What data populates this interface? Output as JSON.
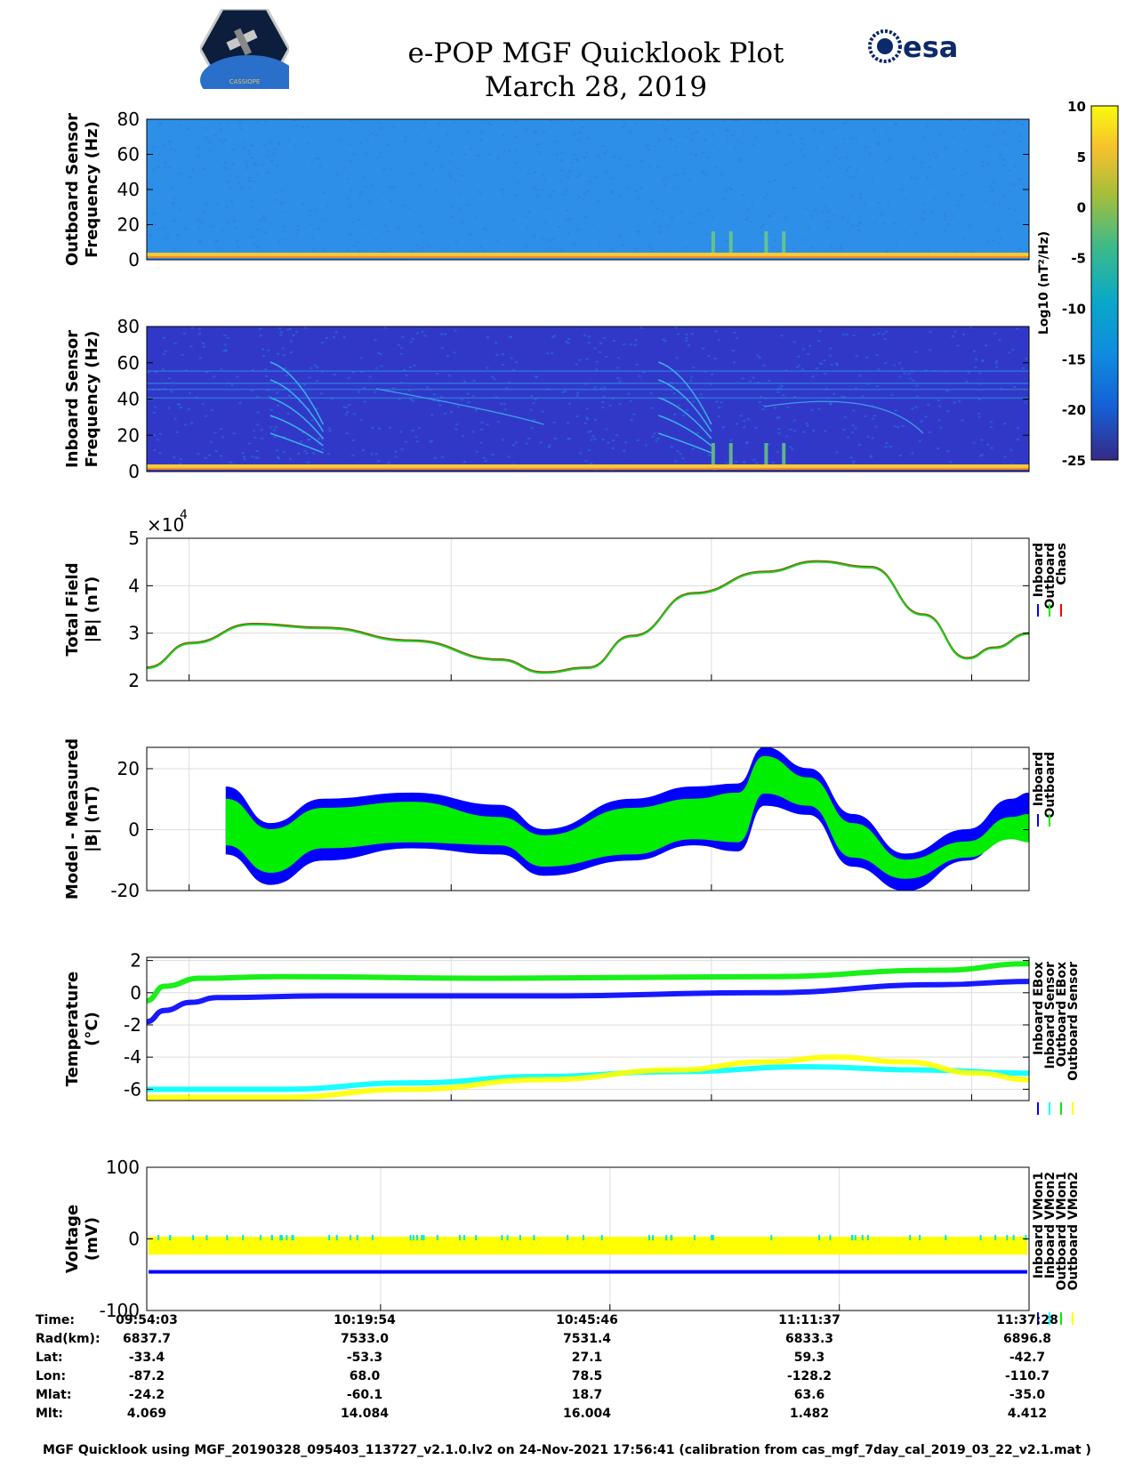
{
  "header": {
    "title": "e-POP MGF Quicklook Plot",
    "date": "March 28, 2019",
    "cassiope_logo_text": "CASSIOPE",
    "esa_logo_text": "esa"
  },
  "colorbar": {
    "label": "Log10 (nT²/Hz)",
    "ticks": [
      "10",
      "5",
      "0",
      "-5",
      "-10",
      "-15",
      "-20",
      "-25"
    ]
  },
  "chart_data": [
    {
      "type": "heatmap",
      "name": "outboard-spectrogram",
      "ylabel": [
        "Outboard Sensor",
        "Frequency (Hz)"
      ],
      "yticks": [
        "80",
        "60",
        "40",
        "20",
        "0"
      ],
      "ylim": [
        0,
        80
      ],
      "background_color": "#2e8fe8",
      "noise_color": "#2f7fe0",
      "line_color": "#f6c934"
    },
    {
      "type": "heatmap",
      "name": "inboard-spectrogram",
      "ylabel": [
        "Inboard Sensor",
        "Frequency (Hz)"
      ],
      "yticks": [
        "80",
        "60",
        "40",
        "20",
        "0"
      ],
      "ylim": [
        0,
        80
      ],
      "background_color": "#3138c8",
      "noise_color": "#2a6bdc",
      "line_color": "#f6c934"
    },
    {
      "type": "line",
      "name": "total-field",
      "ylabel": [
        "Total Field",
        "|B| (nT)"
      ],
      "yticks": [
        "5",
        "4",
        "3",
        "2"
      ],
      "multiplier": "×10",
      "multiplier_exp": "4",
      "ylim": [
        2,
        5
      ],
      "legend": [
        "Inboard",
        "Outboard",
        "Chaos"
      ],
      "legend_colors": [
        "#0000ff",
        "#00ee00",
        "#ff0000"
      ],
      "series": [
        {
          "name": "Chaos",
          "color": "#8a4a00",
          "x": [
            0,
            0.05,
            0.12,
            0.2,
            0.3,
            0.4,
            0.45,
            0.5,
            0.55,
            0.62,
            0.7,
            0.76,
            0.82,
            0.88,
            0.93,
            0.96,
            1.0
          ],
          "y": [
            2.28,
            2.8,
            3.2,
            3.12,
            2.85,
            2.45,
            2.18,
            2.28,
            2.95,
            3.85,
            4.3,
            4.52,
            4.4,
            3.4,
            2.48,
            2.7,
            3.0
          ]
        },
        {
          "name": "Outboard",
          "color": "#22cc22",
          "x": [
            0,
            0.05,
            0.12,
            0.2,
            0.3,
            0.4,
            0.45,
            0.5,
            0.55,
            0.62,
            0.7,
            0.76,
            0.82,
            0.88,
            0.93,
            0.96,
            1.0
          ],
          "y": [
            2.28,
            2.8,
            3.2,
            3.12,
            2.85,
            2.45,
            2.18,
            2.28,
            2.95,
            3.85,
            4.3,
            4.52,
            4.4,
            3.4,
            2.48,
            2.7,
            3.0
          ]
        }
      ]
    },
    {
      "type": "area",
      "name": "model-minus-measured",
      "ylabel": [
        "Model - Measured",
        "|B| (nT)"
      ],
      "yticks": [
        "20",
        "0",
        "-20"
      ],
      "ylim": [
        -20,
        27
      ],
      "legend": [
        "Inboard",
        "Outboard"
      ],
      "legend_colors": [
        "#0000ff",
        "#00ee00"
      ],
      "x_start": 0.09,
      "series": [
        {
          "name": "Inboard",
          "color": "#0000ff",
          "x": [
            0.09,
            0.14,
            0.2,
            0.3,
            0.4,
            0.45,
            0.55,
            0.62,
            0.67,
            0.7,
            0.75,
            0.8,
            0.86,
            0.93,
            0.98,
            1.0
          ],
          "upper": [
            14,
            2,
            10,
            12,
            8,
            0,
            10,
            14,
            15,
            27,
            20,
            5,
            -8,
            0,
            10,
            12
          ],
          "lower": [
            -8,
            -18,
            -10,
            -6,
            -8,
            -15,
            -10,
            -5,
            -7,
            8,
            5,
            -12,
            -20,
            -10,
            0,
            0
          ]
        },
        {
          "name": "Outboard",
          "color": "#00ee00",
          "x": [
            0.09,
            0.14,
            0.2,
            0.3,
            0.4,
            0.45,
            0.55,
            0.62,
            0.67,
            0.7,
            0.75,
            0.8,
            0.86,
            0.93,
            0.98,
            1.0
          ],
          "upper": [
            10,
            0,
            7,
            9,
            4,
            -2,
            7,
            10,
            12,
            24,
            17,
            2,
            -10,
            -4,
            4,
            5
          ],
          "lower": [
            -5,
            -14,
            -6,
            -4,
            -5,
            -12,
            -8,
            -3,
            -4,
            12,
            8,
            -9,
            -16,
            -9,
            -3,
            -4
          ]
        }
      ]
    },
    {
      "type": "line",
      "name": "temperature",
      "ylabel": [
        "Temperature",
        "(°C)"
      ],
      "yticks": [
        "2",
        "0",
        "-2",
        "-4",
        "-6"
      ],
      "ylim": [
        -6.7,
        2.2
      ],
      "legend": [
        "Inboard EBox",
        "Inboard Sensor",
        "Outboard EBox",
        "Outboard Sensor"
      ],
      "legend_colors": [
        "#0000ff",
        "#00ffff",
        "#00ee00",
        "#ffff00"
      ],
      "series": [
        {
          "name": "Outboard EBox",
          "color": "#00ee00",
          "x": [
            0,
            0.02,
            0.06,
            0.15,
            0.4,
            0.7,
            0.9,
            1.0
          ],
          "y": [
            -0.5,
            0.4,
            0.9,
            1.0,
            0.9,
            1.0,
            1.4,
            1.8
          ]
        },
        {
          "name": "Inboard EBox",
          "color": "#0000ff",
          "x": [
            0,
            0.02,
            0.05,
            0.08,
            0.2,
            0.45,
            0.7,
            0.9,
            1.0
          ],
          "y": [
            -1.8,
            -1.1,
            -0.6,
            -0.3,
            -0.2,
            -0.2,
            0.0,
            0.5,
            0.7
          ]
        },
        {
          "name": "Inboard Sensor",
          "color": "#00ffff",
          "x": [
            0,
            0.15,
            0.3,
            0.45,
            0.6,
            0.75,
            0.88,
            1.0
          ],
          "y": [
            -6.0,
            -6.0,
            -5.6,
            -5.2,
            -4.9,
            -4.6,
            -4.8,
            -5.0
          ]
        },
        {
          "name": "Outboard Sensor",
          "color": "#ffff00",
          "x": [
            0,
            0.15,
            0.3,
            0.45,
            0.6,
            0.7,
            0.78,
            0.86,
            0.94,
            1.0
          ],
          "y": [
            -6.5,
            -6.5,
            -6.0,
            -5.4,
            -4.8,
            -4.3,
            -4.0,
            -4.3,
            -5.0,
            -5.4
          ]
        }
      ]
    },
    {
      "type": "line",
      "name": "voltage",
      "ylabel": [
        "Voltage",
        "(mV)"
      ],
      "yticks": [
        "100",
        "0",
        "-100"
      ],
      "ylim": [
        -100,
        100
      ],
      "legend": [
        "Inboard VMon1",
        "Inboard VMon2",
        "Outboard VMon1",
        "Outboard VMon2"
      ],
      "legend_colors": [
        "#0000ff",
        "#00ffff",
        "#00ee00",
        "#ffff00"
      ],
      "series": [
        {
          "name": "Outboard VMon2",
          "color": "#ffff00",
          "band": [
            -22,
            3
          ]
        },
        {
          "name": "Inboard VMon1",
          "color": "#0000ff",
          "level": -46
        }
      ]
    }
  ],
  "ephemeris": {
    "labels": [
      "Time:",
      "Rad(km):",
      "Lat:",
      "Lon:",
      "Mlat:",
      "Mlt:"
    ],
    "columns": [
      [
        "09:54:03",
        "6837.7",
        "-33.4",
        "-87.2",
        "-24.2",
        "4.069"
      ],
      [
        "10:19:54",
        "7533.0",
        "-53.3",
        "68.0",
        "-60.1",
        "14.084"
      ],
      [
        "10:45:46",
        "7531.4",
        "27.1",
        "78.5",
        "18.7",
        "16.004"
      ],
      [
        "11:11:37",
        "6833.3",
        "59.3",
        "-128.2",
        "63.6",
        "1.482"
      ],
      [
        "11:37:28",
        "6896.8",
        "-42.7",
        "-110.7",
        "-35.0",
        "4.412"
      ]
    ]
  },
  "footer": "MGF Quicklook using MGF_20190328_095403_113727_v2.1.0.lv2 on 24-Nov-2021 17:56:41 (calibration from cas_mgf_7day_cal_2019_03_22_v2.1.mat )"
}
